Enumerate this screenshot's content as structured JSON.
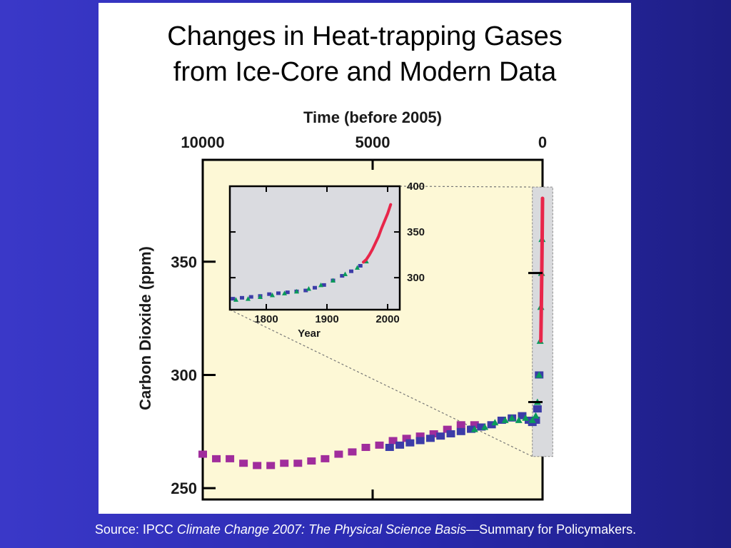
{
  "slide": {
    "title_line1": "Changes in Heat-trapping Gases",
    "title_line2": "from Ice-Core and Modern Data",
    "source_prefix": "Source: IPCC ",
    "source_italic": "Climate Change 2007: The Physical Science Basis",
    "source_suffix": "—Summary for Policymakers."
  },
  "colors": {
    "background_blue": "#2f2fbd",
    "plot_fill": "#fdf8d6",
    "inset_fill": "#dadbe0",
    "zoom_band": "#d9dadd",
    "ice_core_purple": "#a02d9c",
    "ice_core_blue": "#3c3ca8",
    "ice_core_green": "#0a9a5a",
    "modern_red": "#e8264a"
  },
  "chart_data": [
    {
      "type": "scatter",
      "top_axis_title": "Time (before 2005)",
      "ylabel": "Carbon Dioxide (ppm)",
      "x_reversed": true,
      "xlim": [
        10000,
        0
      ],
      "ylim": [
        245,
        395
      ],
      "x_ticks": [
        10000,
        5000,
        0
      ],
      "x_tick_labels": [
        "10000",
        "5000",
        "0"
      ],
      "y_ticks": [
        250,
        300,
        350
      ],
      "y_tick_labels": [
        "250",
        "300",
        "350"
      ],
      "series": [
        {
          "x": [
            10000,
            9600,
            9200,
            8800,
            8400,
            8000,
            7600,
            7200,
            6800,
            6400,
            6000,
            5600,
            5200,
            4800,
            4400,
            4000,
            3600,
            3200,
            2800,
            2400,
            2000
          ],
          "y": [
            265,
            263,
            263,
            261,
            260,
            260,
            261,
            261,
            262,
            263,
            265,
            266,
            268,
            269,
            271,
            272,
            273,
            274,
            276,
            278,
            278
          ]
        },
        {
          "x": [
            4500,
            4200,
            3900,
            3600,
            3300,
            3000,
            2700,
            2400,
            2100,
            1800,
            1500,
            1200,
            900,
            600,
            400,
            300,
            200,
            150,
            100
          ],
          "y": [
            268,
            269,
            270,
            271,
            272,
            273,
            274,
            275,
            276,
            277,
            278,
            280,
            281,
            282,
            280,
            279,
            280,
            285,
            300
          ]
        },
        {
          "x": [
            2000,
            1700,
            1400,
            1100,
            900,
            700,
            500,
            300,
            200,
            150,
            100,
            70,
            50,
            30,
            15
          ],
          "y": [
            276,
            277,
            279,
            280,
            281,
            280,
            281,
            280,
            282,
            288,
            300,
            315,
            330,
            345,
            360
          ]
        },
        {
          "x": [
            50,
            45,
            40,
            35,
            30,
            25,
            20,
            15,
            10,
            5,
            0
          ],
          "y": [
            315,
            320,
            325,
            330,
            336,
            342,
            348,
            355,
            362,
            370,
            378
          ]
        }
      ]
    },
    {
      "type": "scatter",
      "xlabel": "Year",
      "xlim": [
        1740,
        2020
      ],
      "ylim": [
        265,
        400
      ],
      "x_ticks": [
        1800,
        1900,
        2000
      ],
      "x_tick_labels": [
        "1800",
        "1900",
        "2000"
      ],
      "y_ticks": [
        300,
        350,
        400
      ],
      "y_tick_labels": [
        "300",
        "350",
        "400"
      ],
      "series": [
        {
          "x": [
            1745,
            1760,
            1775,
            1790,
            1805,
            1820,
            1835,
            1850,
            1865,
            1880,
            1895,
            1910,
            1925,
            1940,
            1955
          ],
          "y": [
            277,
            278,
            279,
            280,
            282,
            283,
            284,
            285,
            286,
            289,
            292,
            297,
            302,
            307,
            313
          ]
        },
        {
          "x": [
            1750,
            1770,
            1790,
            1810,
            1830,
            1850,
            1870,
            1890,
            1910,
            1930,
            1950,
            1965
          ],
          "y": [
            276,
            277,
            279,
            281,
            283,
            285,
            288,
            292,
            297,
            304,
            311,
            318
          ]
        },
        {
          "x": [
            1960,
            1965,
            1970,
            1975,
            1980,
            1985,
            1990,
            1995,
            2000,
            2005
          ],
          "y": [
            317,
            320,
            325,
            331,
            338,
            345,
            354,
            362,
            370,
            380
          ]
        }
      ]
    }
  ]
}
